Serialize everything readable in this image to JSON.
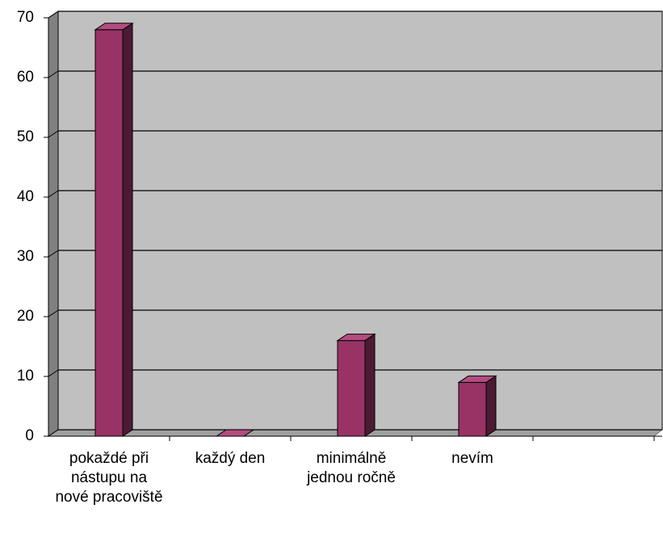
{
  "chart_data": {
    "type": "bar",
    "categories": [
      "pokaždé při nástupu na nové pracoviště",
      "každý den",
      "minimálně jednou ročně",
      "nevím",
      null
    ],
    "values": [
      68,
      0,
      16,
      9,
      null
    ],
    "color": "#993366",
    "ylim": [
      0,
      70
    ],
    "yticks": [
      0,
      10,
      20,
      30,
      40,
      50,
      60,
      70
    ],
    "grid": true
  }
}
